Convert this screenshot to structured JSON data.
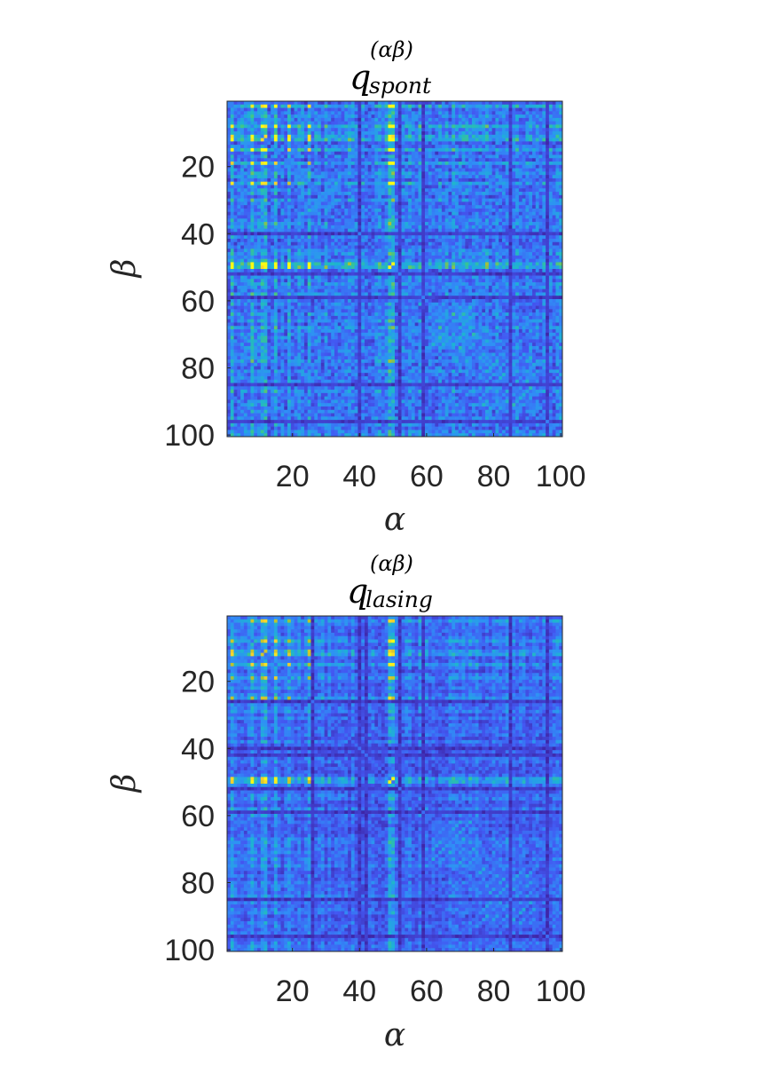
{
  "colors": {
    "colormap": [
      "#3e26a8",
      "#4358f2",
      "#2f8ff6",
      "#1db3d3",
      "#3cc68b",
      "#b6c02c",
      "#f9d130",
      "#f9fb15"
    ],
    "axis": "#262626",
    "background": "#ffffff"
  },
  "chart_data": [
    {
      "type": "heatmap",
      "title": "q",
      "title_superscript": "(αβ)",
      "title_subscript": "spont",
      "xlabel": "α",
      "ylabel": "β",
      "x_range": [
        1,
        100
      ],
      "y_range": [
        1,
        100
      ],
      "y_reversed": true,
      "xticks": [
        "20",
        "40",
        "60",
        "80",
        "100"
      ],
      "yticks": [
        "20",
        "40",
        "60",
        "80",
        "100"
      ],
      "grid": false,
      "colorbar": false,
      "diagonal_value": 0.25,
      "bright_indices": [
        2,
        8,
        11,
        12,
        15,
        19,
        25,
        49,
        50
      ],
      "index_weights": {
        "2": 0.55,
        "8": 0.6,
        "11": 0.55,
        "12": 0.65,
        "15": 0.6,
        "19": 0.5,
        "25": 0.5,
        "49": 0.75,
        "50": 0.7
      },
      "dark_indices": [
        40,
        52,
        59,
        85,
        96
      ],
      "block_regions": [
        {
          "x": [
            62,
            74
          ],
          "y": [
            62,
            74
          ],
          "level": 0.35
        },
        {
          "x": [
            76,
            92
          ],
          "y": [
            76,
            92
          ],
          "level": 0.28
        }
      ],
      "base_level": 0.22,
      "noise": 0.13
    },
    {
      "type": "heatmap",
      "title": "q",
      "title_superscript": "(αβ)",
      "title_subscript": "lasing",
      "xlabel": "α",
      "ylabel": "β",
      "x_range": [
        1,
        100
      ],
      "y_range": [
        1,
        100
      ],
      "y_reversed": true,
      "xticks": [
        "20",
        "40",
        "60",
        "80",
        "100"
      ],
      "yticks": [
        "20",
        "40",
        "60",
        "80",
        "100"
      ],
      "grid": false,
      "colorbar": false,
      "diagonal_value": 0.2,
      "bright_indices": [
        2,
        8,
        11,
        12,
        15,
        19,
        25,
        49,
        50
      ],
      "index_weights": {
        "2": 0.5,
        "8": 0.55,
        "11": 0.5,
        "12": 0.6,
        "15": 0.55,
        "19": 0.45,
        "25": 0.45,
        "49": 0.7,
        "50": 0.65
      },
      "dark_indices": [
        26,
        40,
        42,
        52,
        59,
        85,
        96
      ],
      "block_regions": [
        {
          "x": [
            62,
            74
          ],
          "y": [
            62,
            74
          ],
          "level": 0.28
        },
        {
          "x": [
            76,
            92
          ],
          "y": [
            76,
            92
          ],
          "level": 0.24
        }
      ],
      "base_level": 0.17,
      "noise": 0.09
    }
  ]
}
